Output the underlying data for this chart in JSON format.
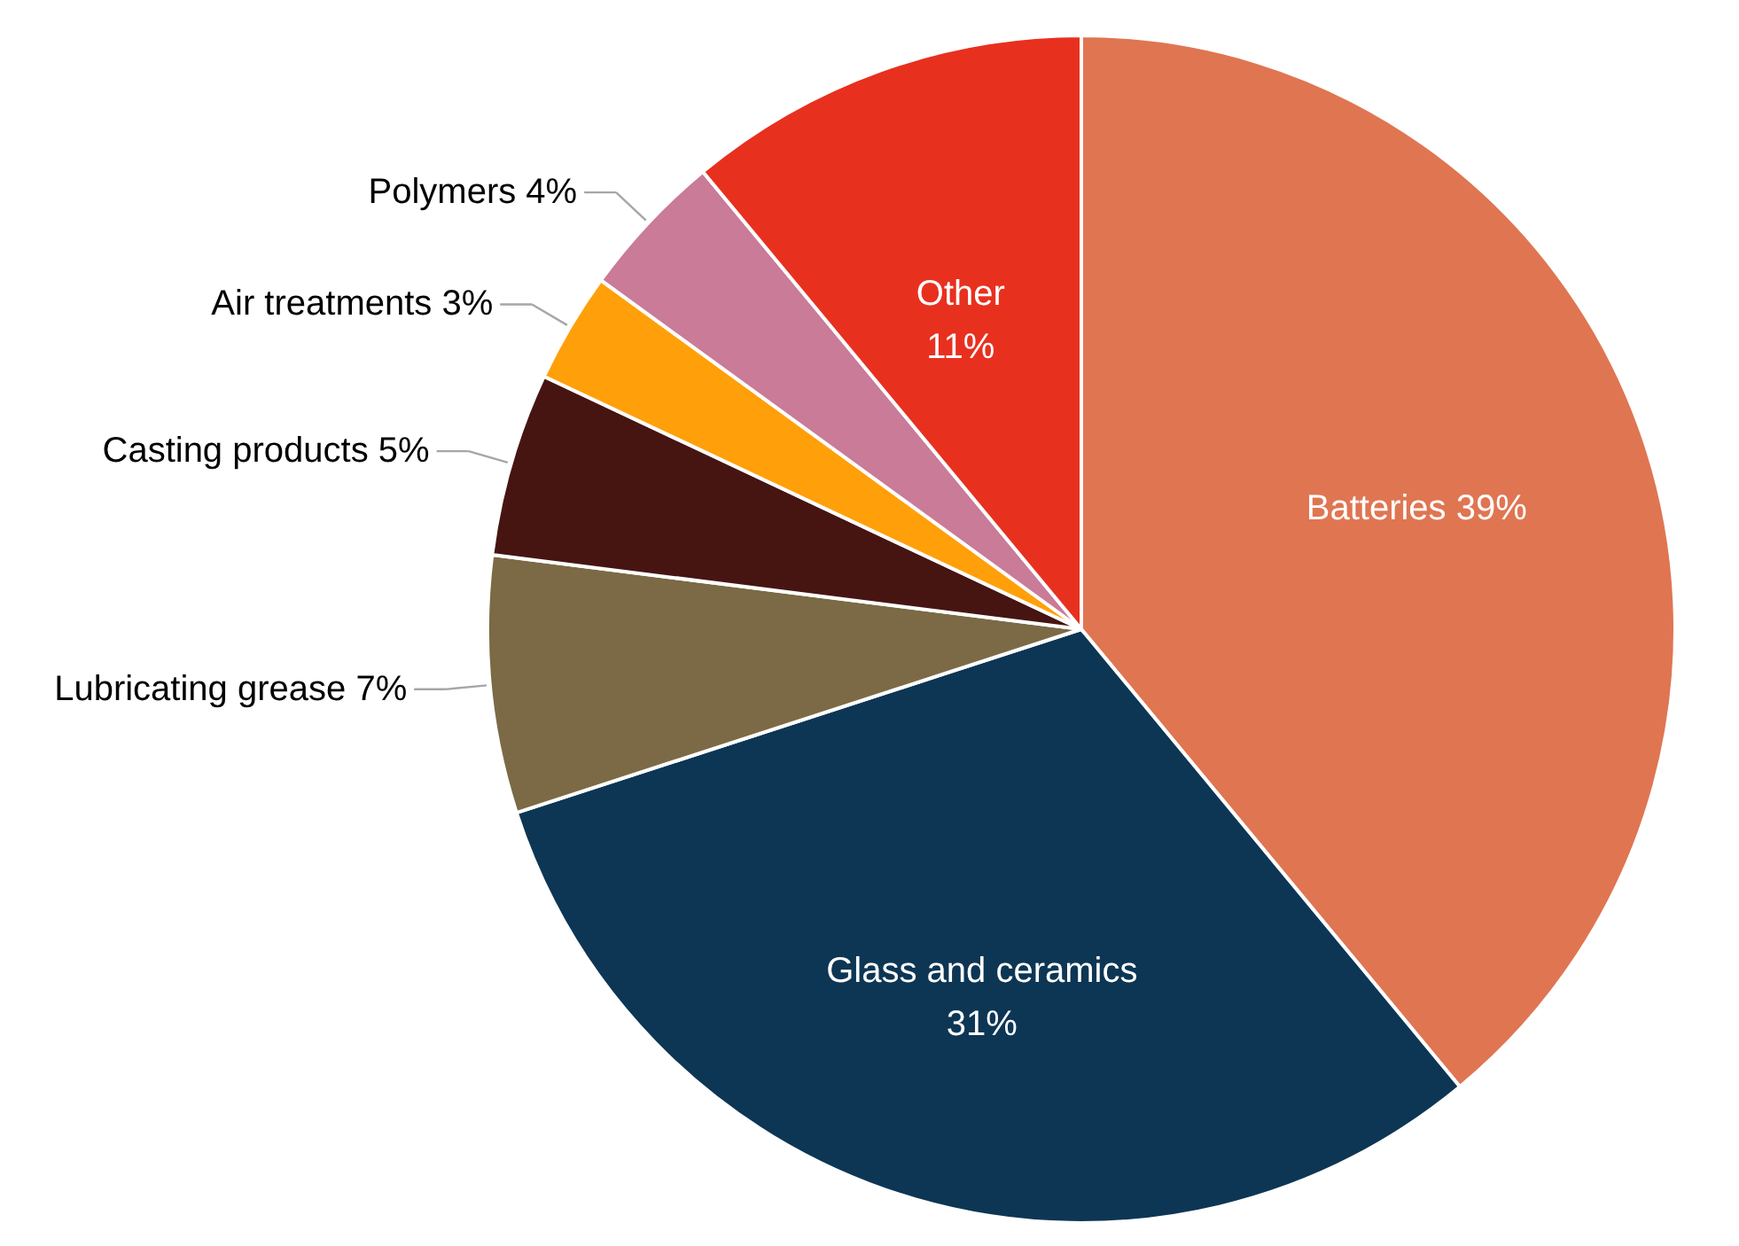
{
  "chart_data": {
    "type": "pie",
    "categories": [
      "Batteries",
      "Glass and ceramics",
      "Lubricating grease",
      "Casting products",
      "Air treatments",
      "Polymers",
      "Other"
    ],
    "values": [
      39,
      31,
      7,
      5,
      3,
      4,
      11
    ],
    "value_labels": [
      "39%",
      "31%",
      "7%",
      "5%",
      "3%",
      "4%",
      "11%"
    ],
    "colors": [
      "#e07552",
      "#0d3654",
      "#7b6a45",
      "#461512",
      "#ffa00a",
      "#c97b98",
      "#e8301f"
    ]
  }
}
